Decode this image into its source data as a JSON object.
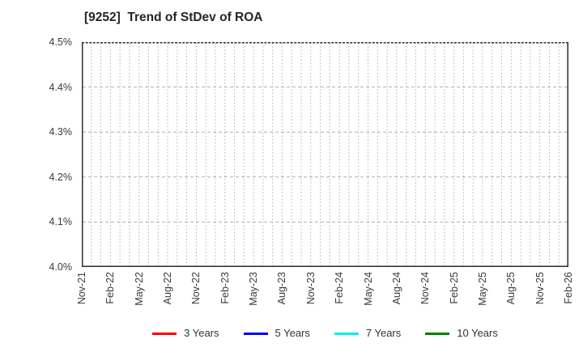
{
  "chart": {
    "title": "[9252]  Trend of StDev of ROA"
  },
  "chart_data": {
    "type": "line",
    "title": "[9252]  Trend of StDev of ROA",
    "x_tick_labels": [
      "Nov-21",
      "Feb-22",
      "May-22",
      "Aug-22",
      "Nov-22",
      "Feb-23",
      "May-23",
      "Aug-23",
      "Nov-23",
      "Feb-24",
      "May-24",
      "Aug-24",
      "Nov-24",
      "Feb-25",
      "May-25",
      "Aug-25",
      "Nov-25",
      "Feb-26"
    ],
    "months_per_labeled_tick": 3,
    "minor_vertical_gridlines": "monthly",
    "y_tick_labels": [
      "4.0%",
      "4.1%",
      "4.2%",
      "4.3%",
      "4.4%",
      "4.5%"
    ],
    "ylim": [
      4.0,
      4.5
    ],
    "y_unit": "%",
    "grid": true,
    "legend_position": "bottom",
    "series": [
      {
        "name": "3 Years",
        "color": "#ff0000",
        "values": []
      },
      {
        "name": "5 Years",
        "color": "#0000ee",
        "values": []
      },
      {
        "name": "7 Years",
        "color": "#00eeee",
        "values": []
      },
      {
        "name": "10 Years",
        "color": "#008000",
        "values": []
      }
    ],
    "visible_data_points": 0
  },
  "colors": {
    "background": "#ffffff",
    "frame": "#2e2e2e",
    "grid": "#b0b0b0",
    "title_text": "#262626",
    "tick_text": "#3a3a3a"
  }
}
